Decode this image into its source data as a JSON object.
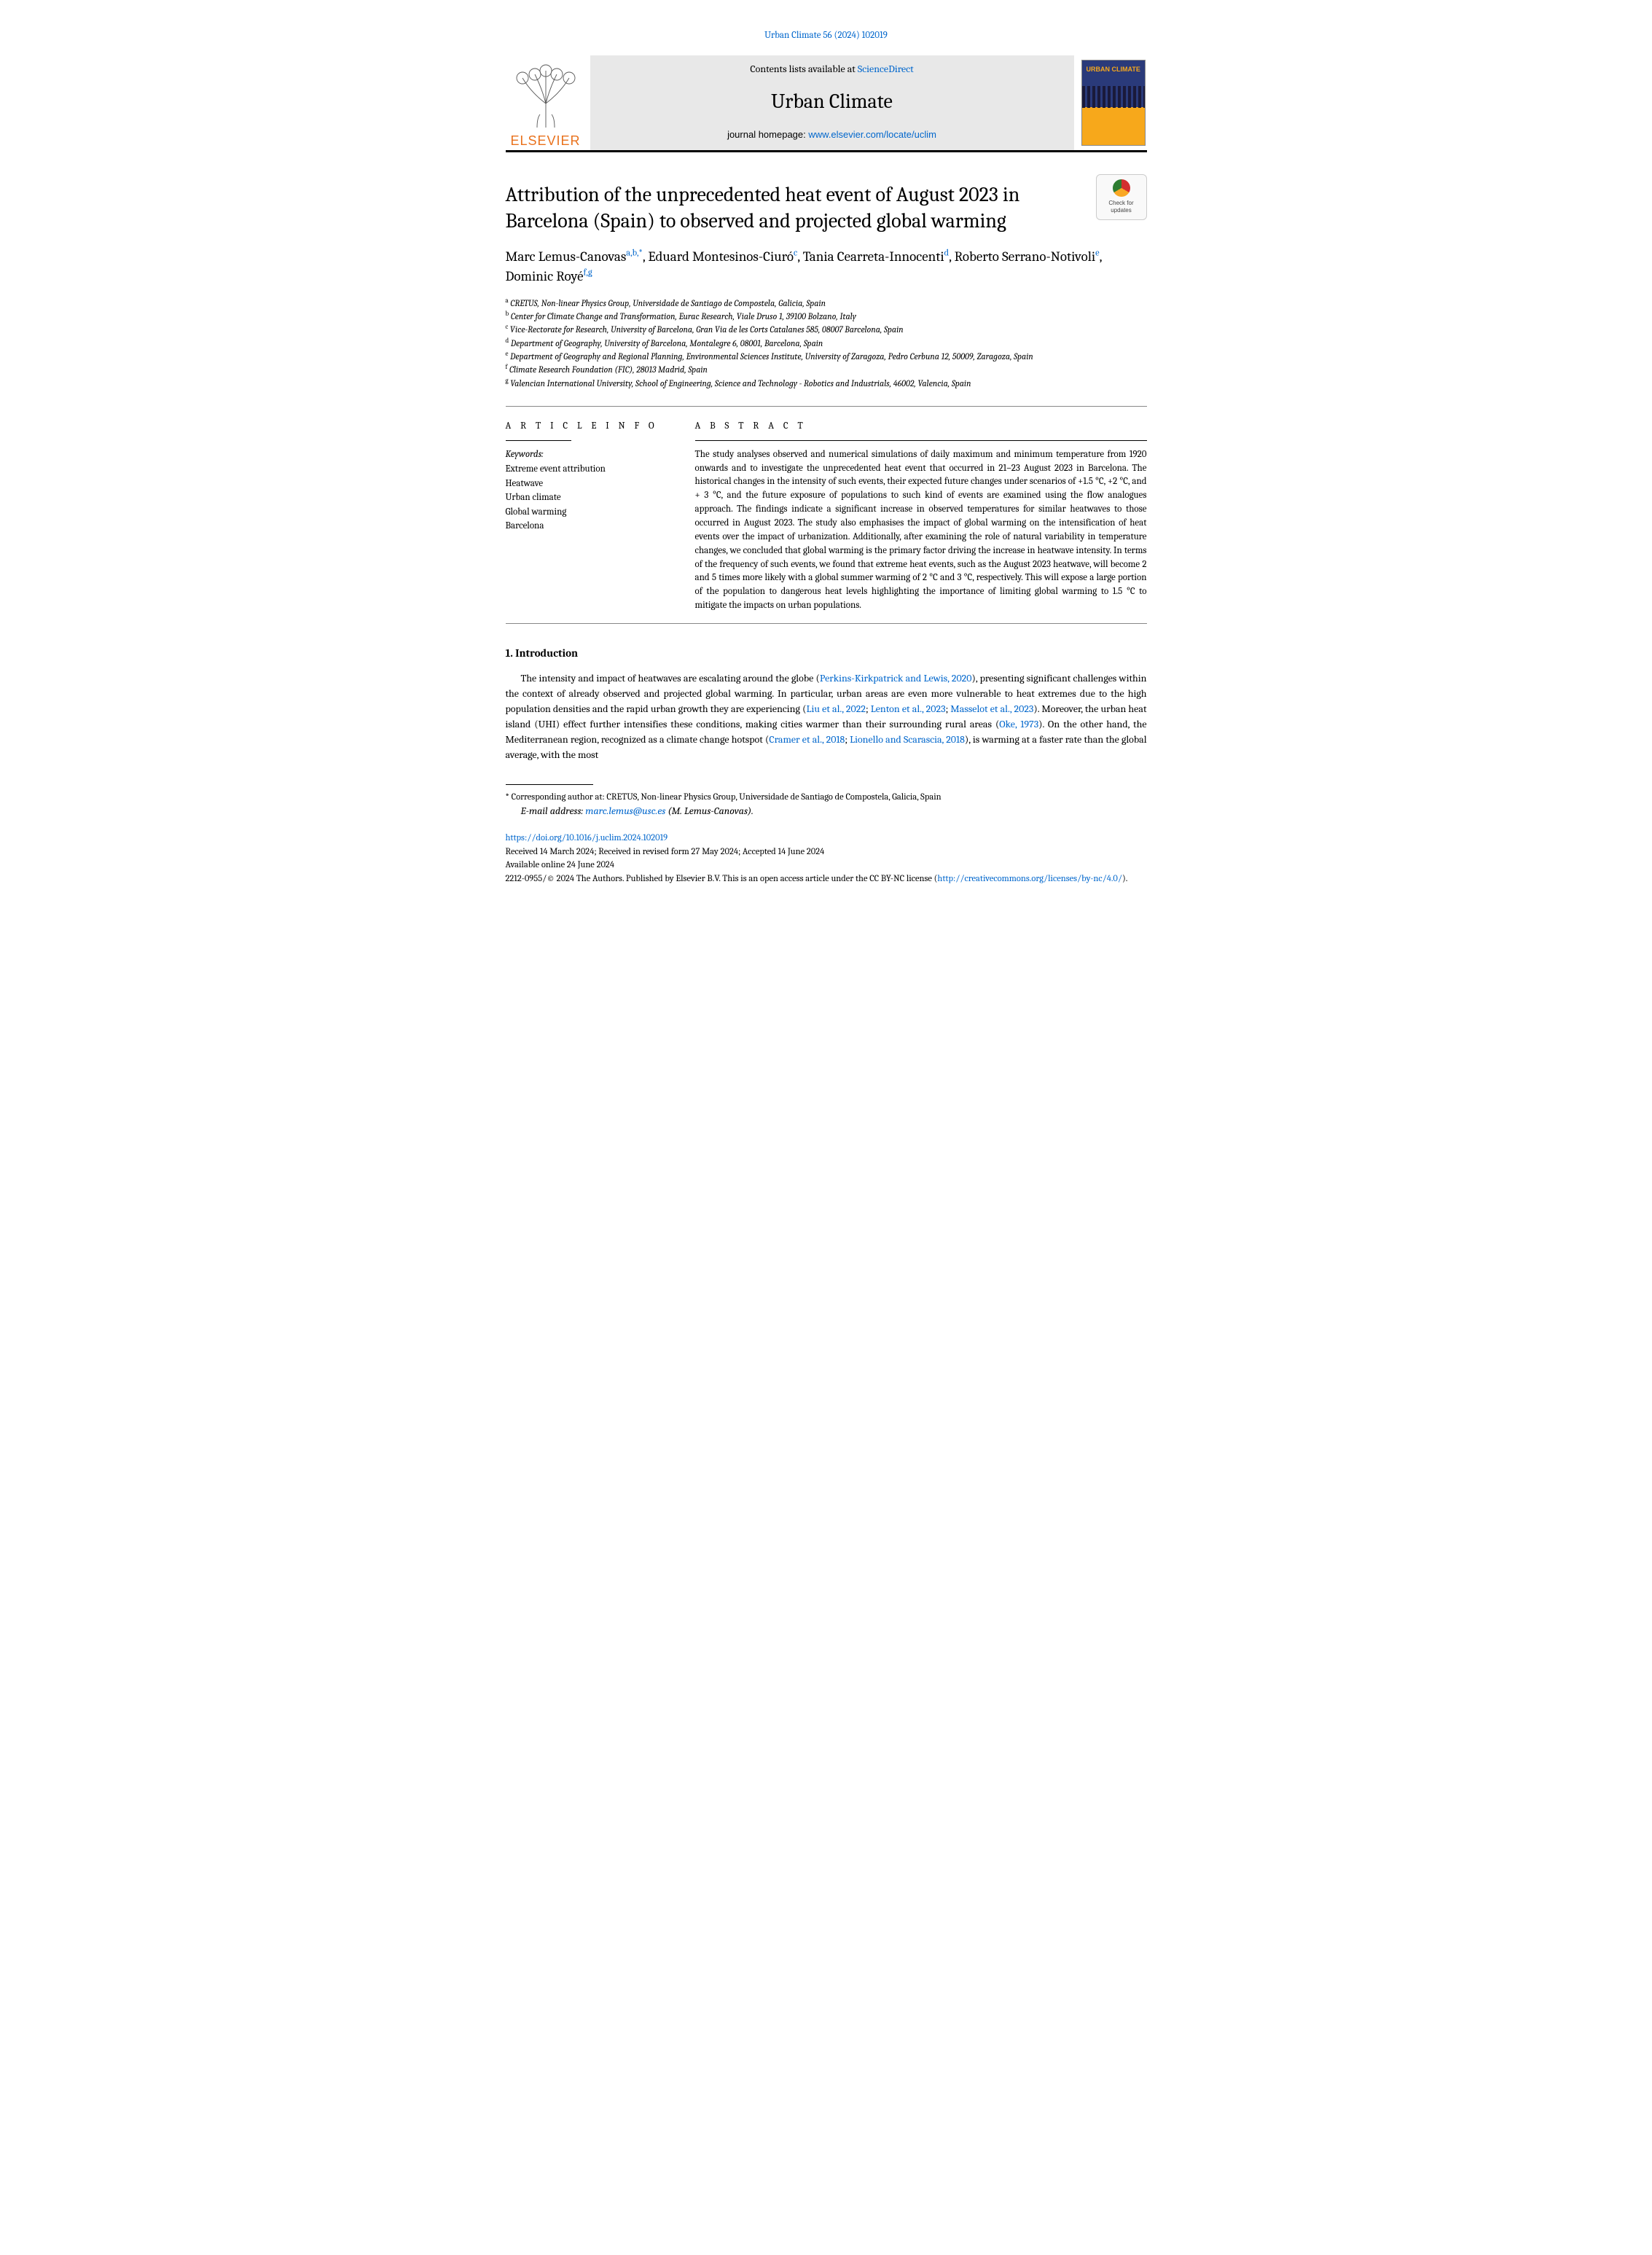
{
  "citation": {
    "journal_short": "Urban Climate",
    "vol_issue": "56 (2024) 102019"
  },
  "header": {
    "contents_pre": "Contents lists available at ",
    "contents_link": "ScienceDirect",
    "journal_title": "Urban Climate",
    "homepage_pre": "journal homepage: ",
    "homepage_url": "www.elsevier.com/locate/uclim",
    "elsevier": "ELSEVIER",
    "cover_label": "URBAN CLIMATE"
  },
  "check_updates": "Check for updates",
  "title": "Attribution of the unprecedented heat event of August 2023 in Barcelona (Spain) to observed and projected global warming",
  "authors": [
    {
      "name": "Marc Lemus-Canovas",
      "sup": "a,b,*"
    },
    {
      "name": "Eduard Montesinos-Ciuró",
      "sup": "c"
    },
    {
      "name": "Tania Cearreta-Innocenti",
      "sup": "d"
    },
    {
      "name": "Roberto Serrano-Notivoli",
      "sup": "e"
    },
    {
      "name": "Dominic Royé",
      "sup": "f,g"
    }
  ],
  "affiliations": [
    {
      "letter": "a",
      "text": "CRETUS, Non-linear Physics Group, Universidade de Santiago de Compostela, Galicia, Spain"
    },
    {
      "letter": "b",
      "text": "Center for Climate Change and Transformation, Eurac Research, Viale Druso 1, 39100 Bolzano, Italy"
    },
    {
      "letter": "c",
      "text": "Vice-Rectorate for Research, University of Barcelona, Gran Via de les Corts Catalanes 585, 08007 Barcelona, Spain"
    },
    {
      "letter": "d",
      "text": "Department of Geography, University of Barcelona, Montalegre 6, 08001, Barcelona, Spain"
    },
    {
      "letter": "e",
      "text": "Department of Geography and Regional Planning, Environmental Sciences Institute, University of Zaragoza, Pedro Cerbuna 12, 50009, Zaragoza, Spain"
    },
    {
      "letter": "f",
      "text": "Climate Research Foundation (FIC), 28013 Madrid, Spain"
    },
    {
      "letter": "g",
      "text": "Valencian International University, School of Engineering, Science and Technology - Robotics and Industrials, 46002, Valencia, Spain"
    }
  ],
  "labels": {
    "article_info": "A R T I C L E  I N F O",
    "abstract": "A B S T R A C T",
    "keywords": "Keywords:"
  },
  "keywords": [
    "Extreme event attribution",
    "Heatwave",
    "Urban climate",
    "Global warming",
    "Barcelona"
  ],
  "abstract": "The study analyses observed and numerical simulations of daily maximum and minimum temperature from 1920 onwards and to investigate the unprecedented heat event that occurred in 21–23 August 2023 in Barcelona. The historical changes in the intensity of such events, their expected future changes under scenarios of +1.5 °C, +2 °C, and + 3 °C, and the future exposure of populations to such kind of events are examined using the flow analogues approach. The findings indicate a significant increase in observed temperatures for similar heatwaves to those occurred in August 2023. The study also emphasises the impact of global warming on the intensification of heat events over the impact of urbanization. Additionally, after examining the role of natural variability in temperature changes, we concluded that global warming is the primary factor driving the increase in heatwave intensity. In terms of the frequency of such events, we found that extreme heat events, such as the August 2023 heatwave, will become 2 and 5 times more likely with a global summer warming of 2 °C and 3 °C, respectively. This will expose a large portion of the population to dangerous heat levels highlighting the importance of limiting global warming to 1.5 °C to mitigate the impacts on urban populations.",
  "intro": {
    "heading": "1. Introduction",
    "p1_parts": [
      "The intensity and impact of heatwaves are escalating around the globe (",
      "Perkins-Kirkpatrick and Lewis, 2020",
      "), presenting significant challenges within the context of already observed and projected global warming. In particular, urban areas are even more vulnerable to heat extremes due to the high population densities and the rapid urban growth they are experiencing (",
      "Liu et al., 2022",
      "; ",
      "Lenton et al., 2023",
      "; ",
      "Masselot et al., 2023",
      "). Moreover, the urban heat island (UHI) effect further intensifies these conditions, making cities warmer than their surrounding rural areas (",
      "Oke, 1973",
      "). On the other hand, the Mediterranean region, recognized as a climate change hotspot (",
      "Cramer et al., 2018",
      "; ",
      "Lionello and Scarascia, 2018",
      "), is warming at a faster rate than the global average, with the most"
    ]
  },
  "footnote": {
    "text": "* Corresponding author at: CRETUS, Non-linear Physics Group, Universidade de Santiago de Compostela, Galicia, Spain",
    "email_label": "E-mail address: ",
    "email": "marc.lemus@usc.es",
    "email_suffix": " (M. Lemus-Canovas)."
  },
  "bottom": {
    "doi": "https://doi.org/10.1016/j.uclim.2024.102019",
    "history": "Received 14 March 2024; Received in revised form 27 May 2024; Accepted 14 June 2024",
    "available": "Available online 24 June 2024",
    "copyright_pre": "2212-0955/© 2024 The Authors. Published by Elsevier B.V. This is an open access article under the CC BY-NC license (",
    "cc_url": "http://creativecommons.org/licenses/by-nc/4.0/",
    "copyright_post": ")."
  },
  "colors": {
    "link": "#0066cc",
    "elsevier_orange": "#e9711c",
    "header_bg": "#e8e8e8",
    "rule": "#000000"
  }
}
